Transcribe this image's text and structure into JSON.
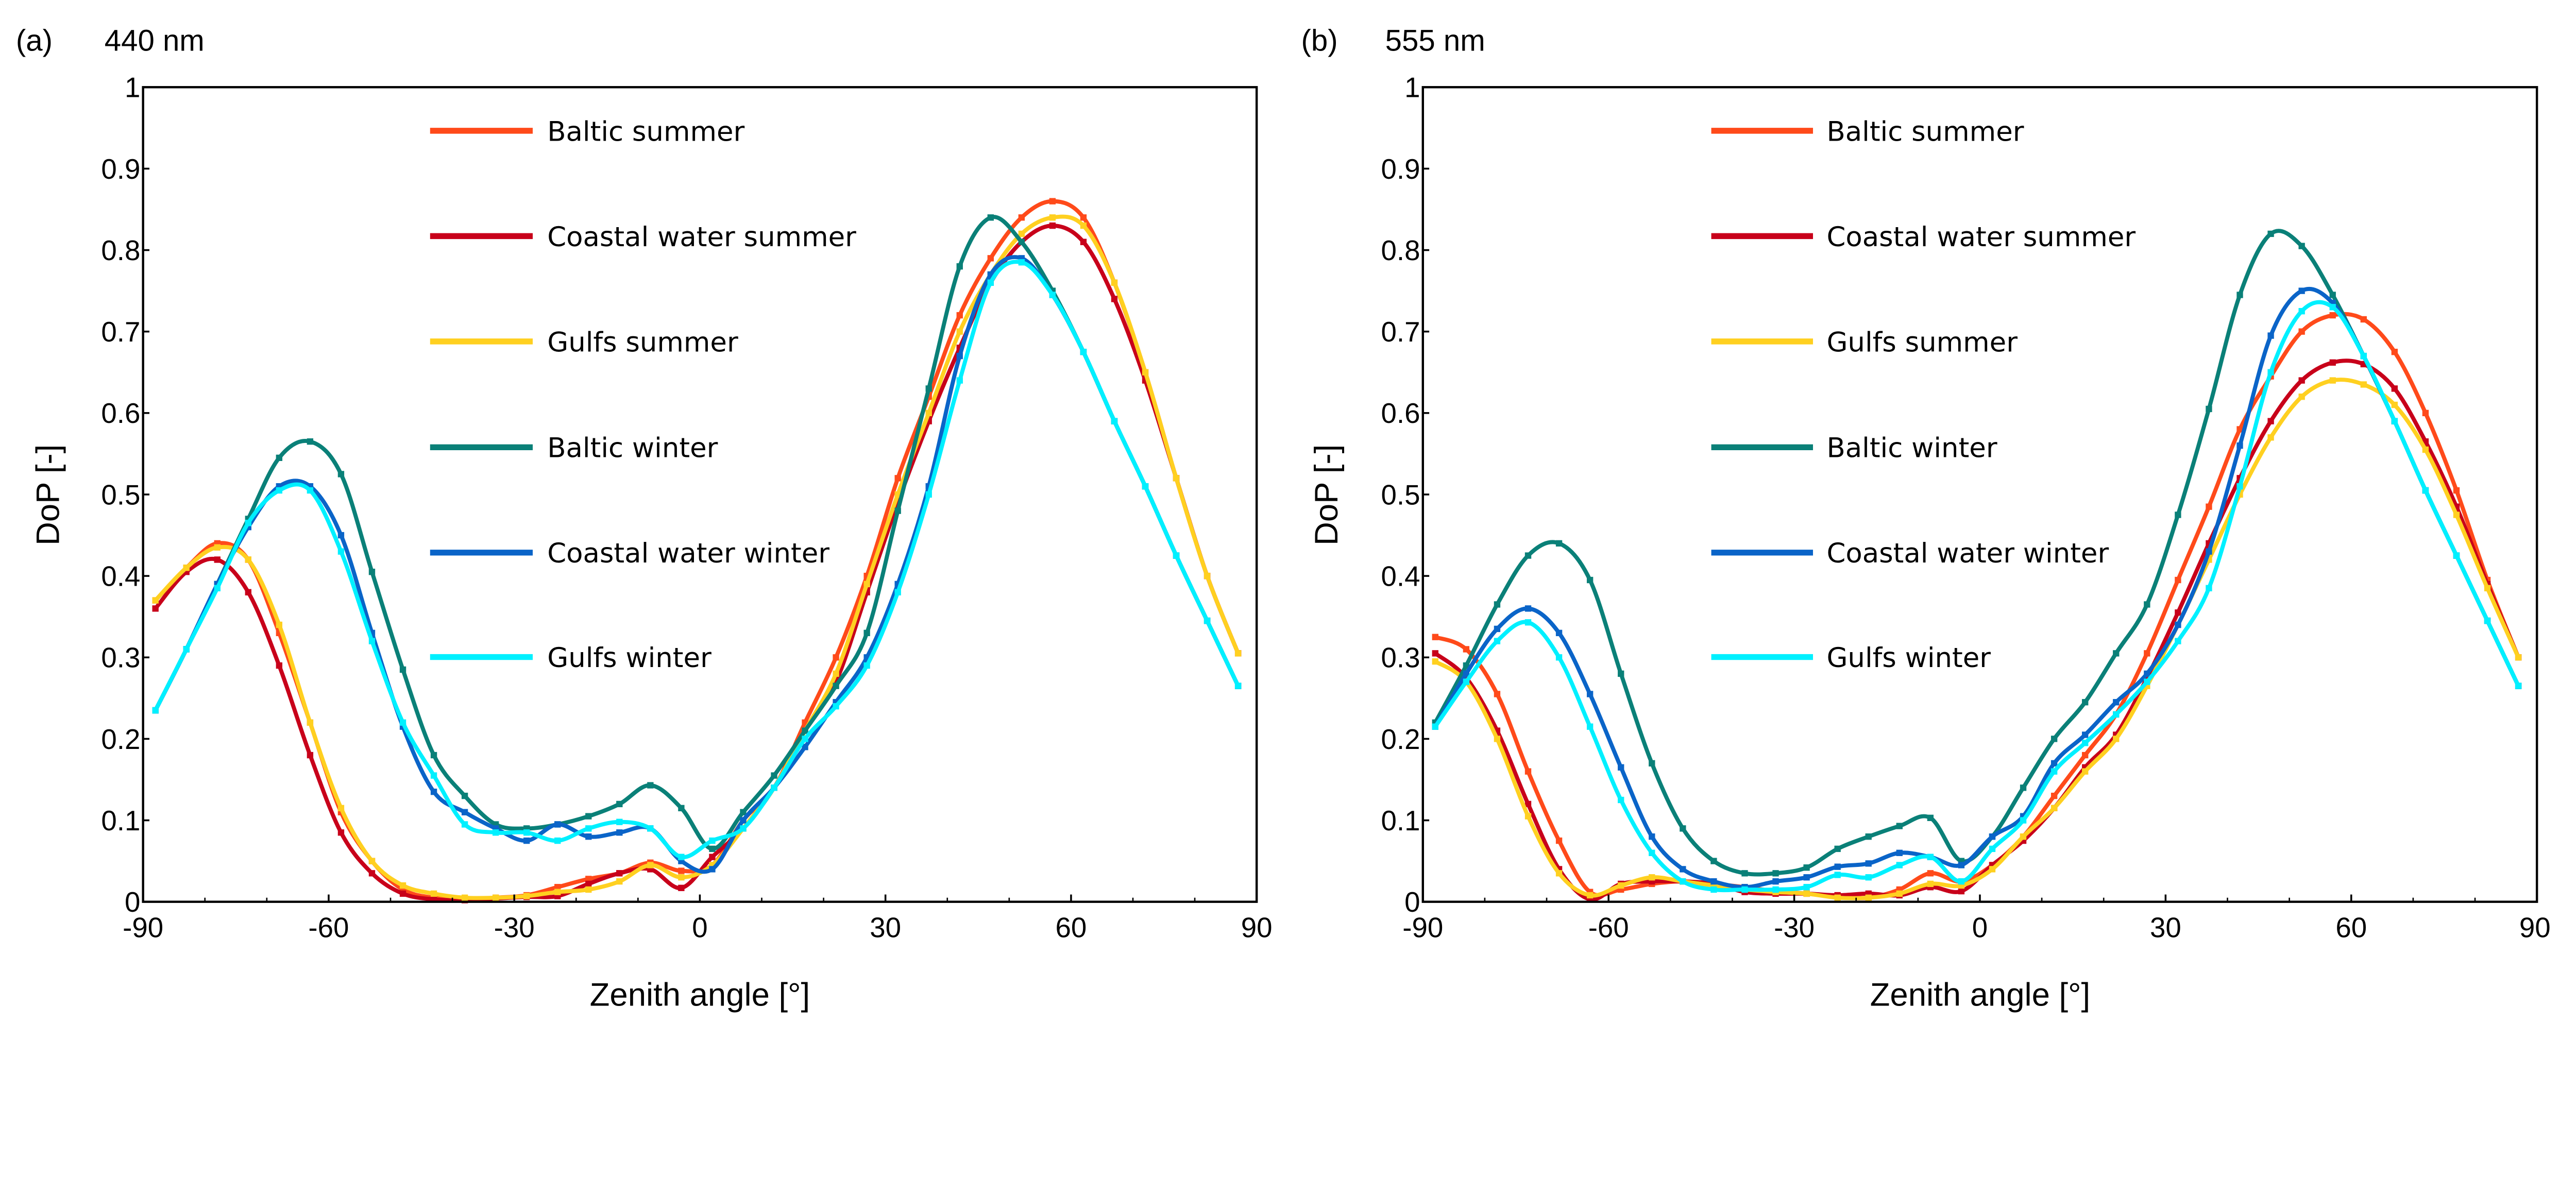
{
  "chart_data": [
    {
      "type": "line",
      "panel_label": "(a)",
      "title": "440 nm",
      "xlabel": "Zenith angle [°]",
      "ylabel": "DoP [-]",
      "xlim": [
        -90,
        90
      ],
      "ylim": [
        0,
        1
      ],
      "xticks": [
        "-90",
        "-60",
        "-30",
        "0",
        "30",
        "60",
        "90"
      ],
      "yticks": [
        "0",
        "0.1",
        "0.2",
        "0.3",
        "0.4",
        "0.5",
        "0.6",
        "0.7",
        "0.8",
        "0.9",
        "1"
      ],
      "grid": false,
      "legend_placement": "top-center",
      "x": [
        -88,
        -83,
        -78,
        -73,
        -68,
        -63,
        -58,
        -53,
        -48,
        -43,
        -38,
        -33,
        -28,
        -23,
        -18,
        -13,
        -8,
        -3,
        2,
        7,
        12,
        17,
        22,
        27,
        32,
        37,
        42,
        47,
        52,
        57,
        62,
        67,
        72,
        77,
        82,
        87
      ],
      "series": [
        {
          "name": "Baltic summer",
          "color": "#ff4a1a",
          "values": [
            0.37,
            0.41,
            0.44,
            0.42,
            0.33,
            0.22,
            0.11,
            0.05,
            0.015,
            0.005,
            0.003,
            0.005,
            0.008,
            0.018,
            0.028,
            0.035,
            0.048,
            0.038,
            0.045,
            0.1,
            0.14,
            0.22,
            0.3,
            0.4,
            0.52,
            0.62,
            0.72,
            0.79,
            0.84,
            0.86,
            0.84,
            0.76,
            0.65,
            0.52,
            0.4,
            0.305
          ]
        },
        {
          "name": "Coastal water summer",
          "color": "#c8001a",
          "values": [
            0.36,
            0.405,
            0.42,
            0.38,
            0.29,
            0.18,
            0.085,
            0.035,
            0.01,
            0.003,
            0.002,
            0.004,
            0.006,
            0.007,
            0.022,
            0.035,
            0.04,
            0.017,
            0.055,
            0.09,
            0.14,
            0.21,
            0.27,
            0.38,
            0.49,
            0.59,
            0.68,
            0.76,
            0.81,
            0.83,
            0.81,
            0.74,
            0.64,
            0.52,
            0.4,
            0.305
          ]
        },
        {
          "name": "Gulfs summer",
          "color": "#ffd020",
          "values": [
            0.37,
            0.41,
            0.435,
            0.42,
            0.34,
            0.22,
            0.115,
            0.05,
            0.02,
            0.01,
            0.005,
            0.005,
            0.007,
            0.012,
            0.015,
            0.025,
            0.045,
            0.03,
            0.045,
            0.09,
            0.14,
            0.21,
            0.28,
            0.39,
            0.5,
            0.6,
            0.7,
            0.77,
            0.82,
            0.84,
            0.83,
            0.76,
            0.65,
            0.52,
            0.4,
            0.305
          ]
        },
        {
          "name": "Baltic winter",
          "color": "#0a8078",
          "values": [
            0.235,
            0.31,
            0.39,
            0.47,
            0.545,
            0.565,
            0.525,
            0.405,
            0.285,
            0.18,
            0.13,
            0.095,
            0.09,
            0.095,
            0.105,
            0.12,
            0.143,
            0.115,
            0.065,
            0.11,
            0.155,
            0.21,
            0.265,
            0.33,
            0.48,
            0.63,
            0.78,
            0.84,
            0.81,
            0.75,
            0.675,
            0.59,
            0.51,
            0.425,
            0.345,
            0.265
          ]
        },
        {
          "name": "Coastal water winter",
          "color": "#0a64c8",
          "values": [
            0.235,
            0.31,
            0.39,
            0.46,
            0.51,
            0.51,
            0.45,
            0.33,
            0.215,
            0.135,
            0.11,
            0.09,
            0.075,
            0.095,
            0.08,
            0.085,
            0.09,
            0.05,
            0.04,
            0.1,
            0.14,
            0.19,
            0.245,
            0.3,
            0.39,
            0.51,
            0.67,
            0.77,
            0.79,
            0.745,
            0.675,
            0.59,
            0.51,
            0.425,
            0.345,
            0.265
          ]
        },
        {
          "name": "Gulfs winter",
          "color": "#00f0ff",
          "values": [
            0.235,
            0.31,
            0.385,
            0.465,
            0.505,
            0.505,
            0.43,
            0.32,
            0.22,
            0.155,
            0.095,
            0.085,
            0.085,
            0.075,
            0.09,
            0.098,
            0.09,
            0.055,
            0.075,
            0.09,
            0.14,
            0.2,
            0.24,
            0.29,
            0.38,
            0.5,
            0.64,
            0.76,
            0.785,
            0.745,
            0.675,
            0.59,
            0.51,
            0.425,
            0.345,
            0.265
          ]
        }
      ]
    },
    {
      "type": "line",
      "panel_label": "(b)",
      "title": "555 nm",
      "xlabel": "Zenith angle [°]",
      "ylabel": "DoP [-]",
      "xlim": [
        -90,
        90
      ],
      "ylim": [
        0,
        1
      ],
      "xticks": [
        "-90",
        "-60",
        "-30",
        "0",
        "30",
        "60",
        "90"
      ],
      "yticks": [
        "0",
        "0.1",
        "0.2",
        "0.3",
        "0.4",
        "0.5",
        "0.6",
        "0.7",
        "0.8",
        "0.9",
        "1"
      ],
      "grid": false,
      "legend_placement": "top-center",
      "x": [
        -88,
        -83,
        -78,
        -73,
        -68,
        -63,
        -58,
        -53,
        -48,
        -43,
        -38,
        -33,
        -28,
        -23,
        -18,
        -13,
        -8,
        -3,
        2,
        7,
        12,
        17,
        22,
        27,
        32,
        37,
        42,
        47,
        52,
        57,
        62,
        67,
        72,
        77,
        82,
        87
      ],
      "series": [
        {
          "name": "Baltic summer",
          "color": "#ff4a1a",
          "values": [
            0.325,
            0.31,
            0.255,
            0.16,
            0.075,
            0.012,
            0.015,
            0.022,
            0.025,
            0.022,
            0.018,
            0.013,
            0.01,
            0.006,
            0.005,
            0.015,
            0.035,
            0.025,
            0.045,
            0.08,
            0.13,
            0.18,
            0.23,
            0.305,
            0.395,
            0.485,
            0.58,
            0.645,
            0.7,
            0.72,
            0.715,
            0.675,
            0.6,
            0.505,
            0.395,
            0.3
          ]
        },
        {
          "name": "Coastal water summer",
          "color": "#c8001a",
          "values": [
            0.305,
            0.275,
            0.21,
            0.12,
            0.04,
            0.003,
            0.022,
            0.025,
            0.025,
            0.022,
            0.012,
            0.01,
            0.01,
            0.008,
            0.01,
            0.008,
            0.018,
            0.013,
            0.045,
            0.075,
            0.115,
            0.165,
            0.205,
            0.275,
            0.355,
            0.44,
            0.52,
            0.59,
            0.64,
            0.662,
            0.66,
            0.63,
            0.565,
            0.485,
            0.39,
            0.3
          ]
        },
        {
          "name": "Gulfs summer",
          "color": "#ffd020",
          "values": [
            0.295,
            0.27,
            0.2,
            0.105,
            0.035,
            0.008,
            0.02,
            0.03,
            0.025,
            0.02,
            0.015,
            0.012,
            0.01,
            0.005,
            0.005,
            0.01,
            0.022,
            0.02,
            0.04,
            0.08,
            0.115,
            0.16,
            0.2,
            0.265,
            0.34,
            0.42,
            0.5,
            0.57,
            0.62,
            0.64,
            0.635,
            0.61,
            0.555,
            0.475,
            0.385,
            0.3
          ]
        },
        {
          "name": "Baltic winter",
          "color": "#0a8078",
          "values": [
            0.22,
            0.29,
            0.365,
            0.425,
            0.44,
            0.395,
            0.28,
            0.17,
            0.09,
            0.05,
            0.035,
            0.035,
            0.042,
            0.065,
            0.08,
            0.093,
            0.103,
            0.05,
            0.08,
            0.14,
            0.2,
            0.245,
            0.305,
            0.365,
            0.475,
            0.605,
            0.745,
            0.82,
            0.805,
            0.745,
            0.67,
            0.59,
            0.505,
            0.425,
            0.345,
            0.265
          ]
        },
        {
          "name": "Coastal water winter",
          "color": "#0a64c8",
          "values": [
            0.215,
            0.28,
            0.335,
            0.36,
            0.33,
            0.255,
            0.165,
            0.08,
            0.04,
            0.025,
            0.018,
            0.025,
            0.03,
            0.043,
            0.047,
            0.06,
            0.055,
            0.045,
            0.08,
            0.105,
            0.17,
            0.205,
            0.245,
            0.28,
            0.34,
            0.43,
            0.56,
            0.695,
            0.75,
            0.735,
            0.67,
            0.59,
            0.505,
            0.425,
            0.345,
            0.265
          ]
        },
        {
          "name": "Gulfs winter",
          "color": "#00f0ff",
          "values": [
            0.215,
            0.27,
            0.32,
            0.343,
            0.3,
            0.215,
            0.125,
            0.06,
            0.025,
            0.015,
            0.015,
            0.015,
            0.018,
            0.033,
            0.03,
            0.045,
            0.055,
            0.025,
            0.065,
            0.1,
            0.16,
            0.195,
            0.23,
            0.27,
            0.32,
            0.385,
            0.51,
            0.65,
            0.725,
            0.73,
            0.67,
            0.59,
            0.505,
            0.425,
            0.345,
            0.265
          ]
        }
      ]
    }
  ]
}
